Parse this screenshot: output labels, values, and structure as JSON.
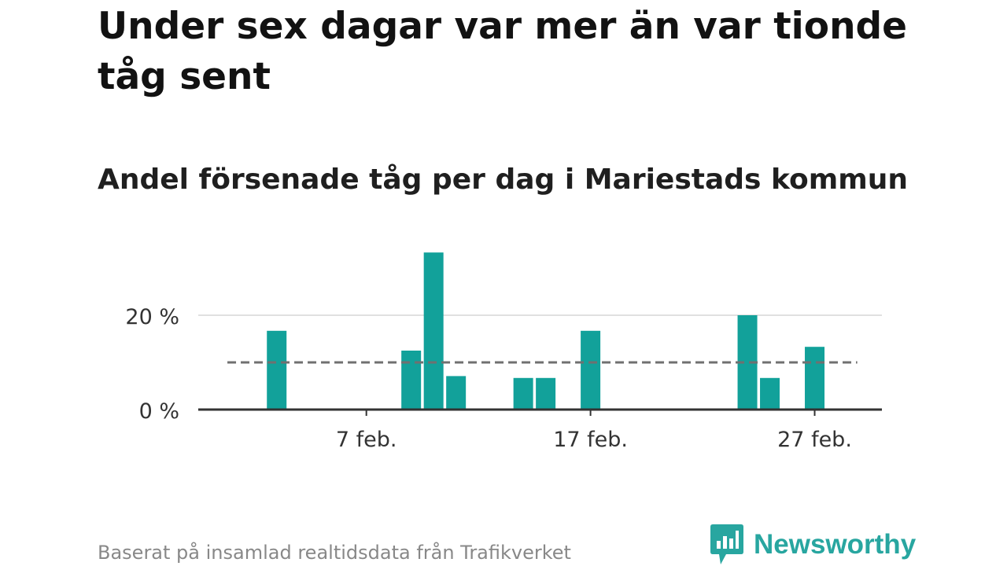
{
  "header": {
    "title": "Under sex dagar var mer än var tionde tåg sent",
    "subtitle": "Andel försenade tåg per dag i Mariestads kommun"
  },
  "chart_data": {
    "type": "bar",
    "x_unit": "day of February",
    "x": [
      3,
      9,
      10,
      11,
      14,
      15,
      17,
      24,
      25,
      27
    ],
    "values": [
      16.7,
      12.5,
      33.3,
      7.1,
      6.7,
      6.7,
      16.7,
      20.0,
      6.7,
      13.3
    ],
    "x_ticks": [
      {
        "x": 7,
        "label": "7 feb."
      },
      {
        "x": 17,
        "label": "17 feb."
      },
      {
        "x": 27,
        "label": "27 feb."
      }
    ],
    "y_ticks": [
      {
        "y": 0,
        "label": "0 %"
      },
      {
        "y": 20,
        "label": "20 %"
      }
    ],
    "xlim": [
      -0.5,
      30
    ],
    "ylim": [
      0,
      35
    ],
    "reference_line": {
      "value": 10,
      "style": "dashed"
    },
    "grid": "horizontal",
    "colors": {
      "bar": "#12a19a",
      "reference": "#707070",
      "axis": "#333333",
      "grid": "#e0e0e0"
    }
  },
  "footer": {
    "source": "Baserat på insamlad realtidsdata från Trafikverket",
    "brand": "Newsworthy"
  },
  "colors": {
    "brand": "#28a6a0"
  },
  "icons": {
    "brand_logo": "newsworthy-chart-bubble-icon"
  }
}
